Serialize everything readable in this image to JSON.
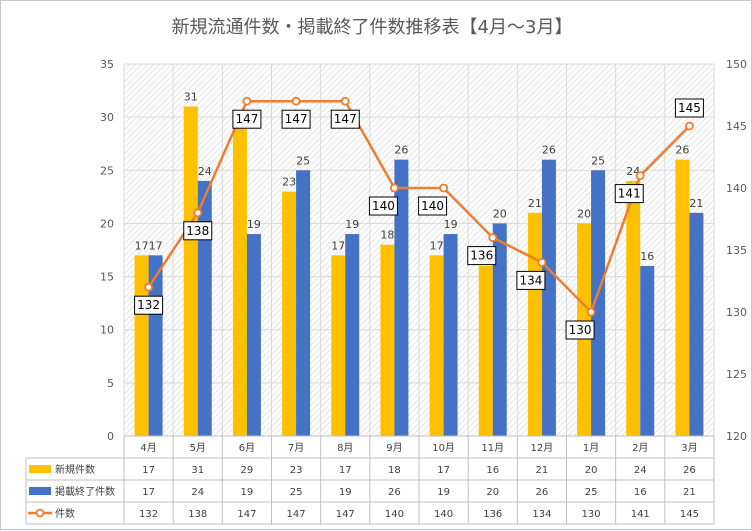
{
  "chart_data": {
    "type": "bar",
    "title": "新規流通件数・掲載終了件数推移表【4月～3月】",
    "categories": [
      "4月",
      "5月",
      "6月",
      "7月",
      "8月",
      "9月",
      "10月",
      "11月",
      "12月",
      "1月",
      "2月",
      "3月"
    ],
    "series": [
      {
        "name": "新規件数",
        "kind": "bar",
        "axis": "left",
        "color": "#FFC000",
        "values": [
          17,
          31,
          29,
          23,
          17,
          18,
          17,
          16,
          21,
          20,
          24,
          26
        ]
      },
      {
        "name": "掲載終了件数",
        "kind": "bar",
        "axis": "left",
        "color": "#4472C4",
        "values": [
          17,
          24,
          19,
          25,
          19,
          26,
          19,
          20,
          26,
          25,
          16,
          21
        ]
      },
      {
        "name": "件数",
        "kind": "line",
        "axis": "right",
        "color": "#ED7D31",
        "values": [
          132,
          138,
          147,
          147,
          147,
          140,
          140,
          136,
          134,
          130,
          141,
          145
        ]
      }
    ],
    "ylim": [
      0,
      35
    ],
    "yticks": [
      0,
      5,
      10,
      15,
      20,
      25,
      30,
      35
    ],
    "y2lim": [
      120,
      150
    ],
    "y2ticks": [
      120,
      125,
      130,
      135,
      140,
      145,
      150
    ],
    "grid": true,
    "legend": "data-table"
  }
}
